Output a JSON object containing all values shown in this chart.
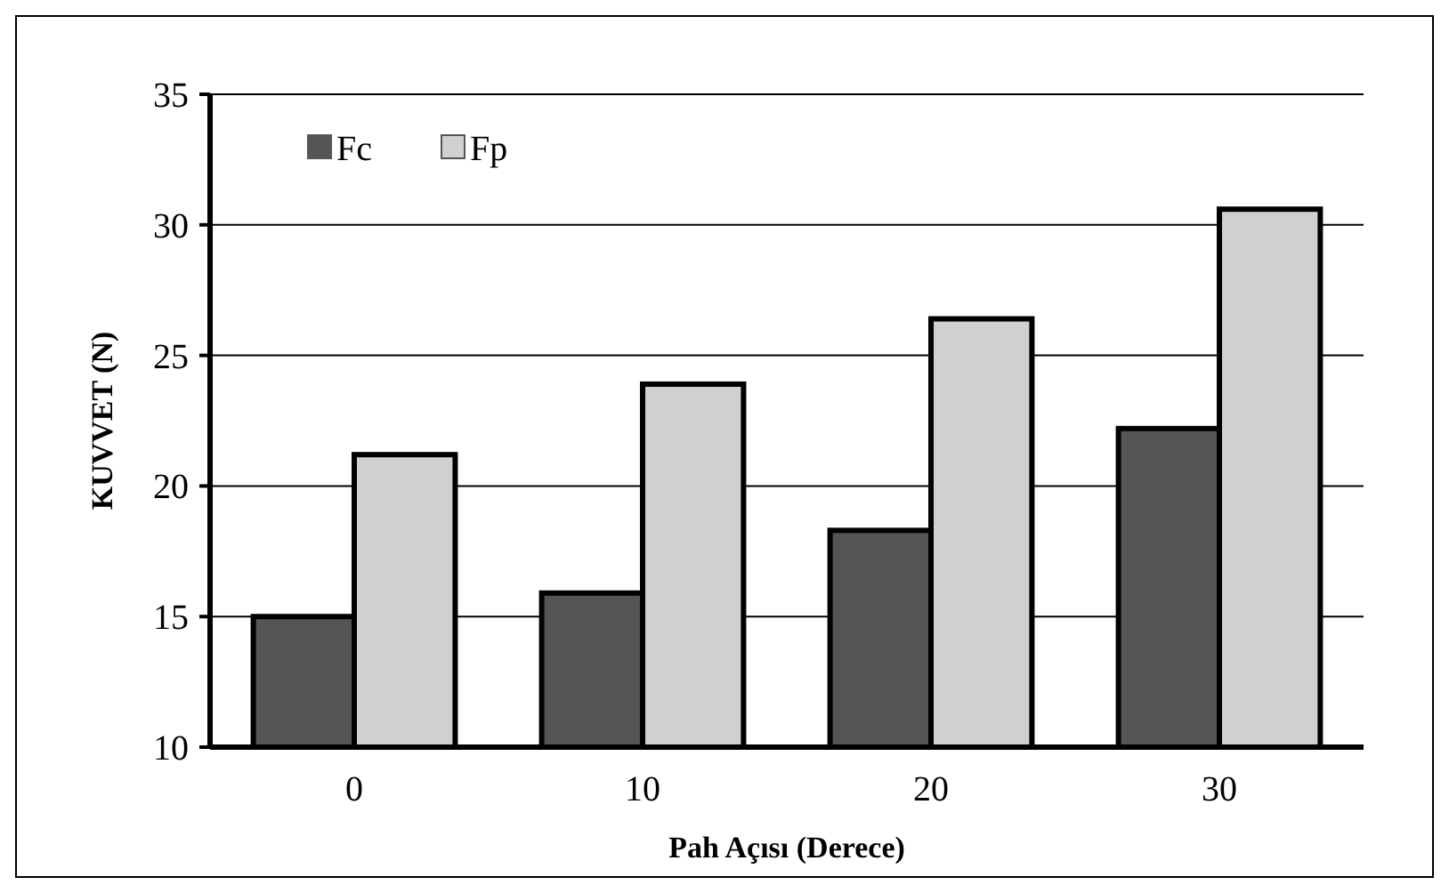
{
  "chart_data": {
    "type": "bar",
    "xlabel": "Pah Açısı (Derece)",
    "ylabel": "KUVVET (N)",
    "categories": [
      "0",
      "10",
      "20",
      "30"
    ],
    "series": [
      {
        "name": "Fc",
        "color": "#555555",
        "values": [
          15.0,
          15.9,
          18.3,
          22.2
        ]
      },
      {
        "name": "Fp",
        "color": "#d0d0d0",
        "values": [
          21.2,
          23.9,
          26.4,
          30.6
        ]
      }
    ],
    "ylim": [
      10,
      35
    ],
    "yticks": [
      10,
      15,
      20,
      25,
      30,
      35
    ],
    "grid": "y",
    "legend": "top left"
  }
}
